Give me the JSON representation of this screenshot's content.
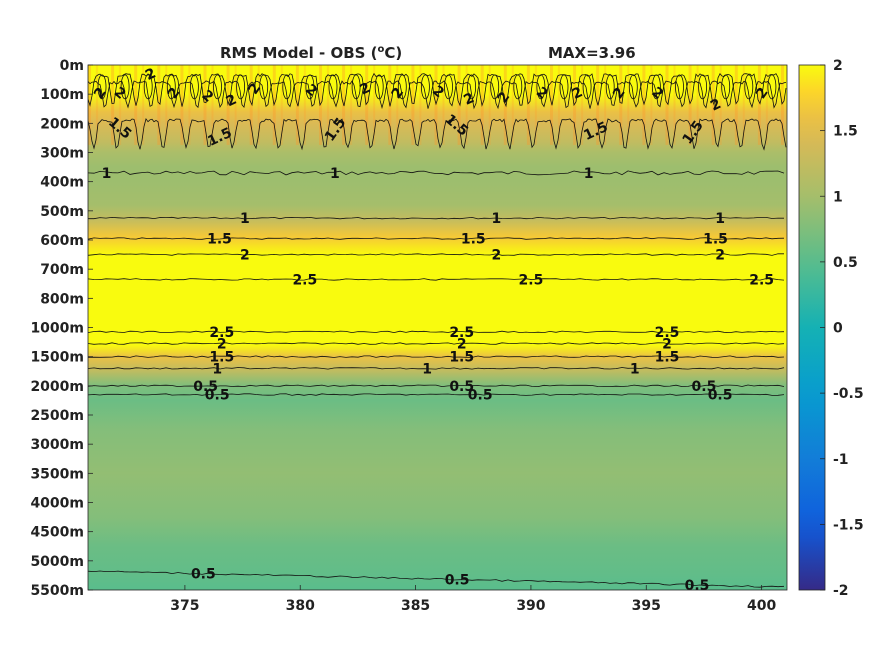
{
  "chart_data": {
    "type": "heatmap",
    "title": "RMS Model - OBS (",
    "title_unit_sup": "o",
    "title_unit_end": "C)",
    "max_label": "MAX=3.96",
    "x_ticks": [
      "375",
      "380",
      "385",
      "390",
      "395",
      "400"
    ],
    "x_tick_values": [
      375,
      380,
      385,
      390,
      395,
      400
    ],
    "xlim": [
      370.8,
      401.1
    ],
    "y_ticks": [
      "0m",
      "100m",
      "200m",
      "300m",
      "400m",
      "500m",
      "600m",
      "700m",
      "800m",
      "1000m",
      "1500m",
      "2000m",
      "2500m",
      "3000m",
      "3500m",
      "4000m",
      "4500m",
      "5000m",
      "5500m"
    ],
    "colorbar_ticks": [
      "2",
      "1.5",
      "1",
      "0.5",
      "0",
      "-0.5",
      "-1",
      "-1.5",
      "-2"
    ],
    "colorbar_values": [
      2,
      1.5,
      1,
      0.5,
      0,
      -0.5,
      -1,
      -1.5,
      -2
    ],
    "clim": [
      -2,
      2
    ],
    "colormap": "parula",
    "depth_profile": [
      {
        "level": 0,
        "value": 2.3
      },
      {
        "level": 0.5,
        "value": 2.2
      },
      {
        "level": 1,
        "value": 2.0
      },
      {
        "level": 1.6,
        "value": 1.6
      },
      {
        "level": 2.0,
        "value": 1.45
      },
      {
        "level": 2.6,
        "value": 1.25
      },
      {
        "level": 3.0,
        "value": 1.05
      },
      {
        "level": 3.5,
        "value": 0.95
      },
      {
        "level": 4.0,
        "value": 0.95
      },
      {
        "level": 4.8,
        "value": 1.0
      },
      {
        "level": 5.3,
        "value": 1.25
      },
      {
        "level": 5.9,
        "value": 1.7
      },
      {
        "level": 6.5,
        "value": 2.2
      },
      {
        "level": 7.0,
        "value": 2.6
      },
      {
        "level": 8.0,
        "value": 3.2
      },
      {
        "level": 8.7,
        "value": 3.0
      },
      {
        "level": 9.1,
        "value": 2.5
      },
      {
        "level": 9.6,
        "value": 2.0
      },
      {
        "level": 10.0,
        "value": 1.6
      },
      {
        "level": 10.5,
        "value": 1.2
      },
      {
        "level": 11.0,
        "value": 0.75
      },
      {
        "level": 11.5,
        "value": 0.62
      },
      {
        "level": 12.5,
        "value": 0.78
      },
      {
        "level": 14.0,
        "value": 0.88
      },
      {
        "level": 15.5,
        "value": 0.78
      },
      {
        "level": 16.5,
        "value": 0.62
      },
      {
        "level": 17.5,
        "value": 0.55
      },
      {
        "level": 18.0,
        "value": 0.5
      }
    ],
    "contour_lines": [
      {
        "value": "1",
        "level": 3.7,
        "labels": [
          371.6,
          381.5,
          392.5,
          401.5
        ]
      },
      {
        "value": "1",
        "level": 5.25,
        "labels": [
          377.6,
          388.5,
          398.2
        ]
      },
      {
        "value": "1.5",
        "level": 5.95,
        "labels": [
          376.5,
          387.5,
          398.0
        ]
      },
      {
        "value": "2",
        "level": 6.5,
        "labels": [
          377.6,
          388.5,
          398.2
        ]
      },
      {
        "value": "2.5",
        "level": 7.35,
        "labels": [
          380.2,
          390.0,
          400.0
        ]
      },
      {
        "value": "2.5",
        "level": 9.15,
        "labels": [
          376.6,
          387.0,
          395.9
        ]
      },
      {
        "value": "2",
        "level": 9.55,
        "labels": [
          376.6,
          387.0,
          395.9
        ]
      },
      {
        "value": "1.5",
        "level": 10.0,
        "labels": [
          376.6,
          387.0,
          395.9
        ]
      },
      {
        "value": "1",
        "level": 10.4,
        "labels": [
          376.4,
          385.5,
          394.5
        ]
      },
      {
        "value": "0.5",
        "level": 11.0,
        "labels": [
          375.9,
          387.0,
          397.5
        ]
      },
      {
        "value": "0.5",
        "level": 11.3,
        "labels": [
          376.4,
          387.8,
          398.2
        ]
      },
      {
        "value": "0.5",
        "level": 17.35,
        "labels": [
          375.8,
          386.8,
          397.2
        ]
      }
    ],
    "top_zone_labels": [
      {
        "text": "2",
        "x": 371.3,
        "level": 0.95
      },
      {
        "text": "2",
        "x": 372.2,
        "level": 0.95
      },
      {
        "text": "2",
        "x": 373.5,
        "level": 0.3
      },
      {
        "text": "2",
        "x": 374.5,
        "level": 0.95
      },
      {
        "text": "2",
        "x": 376.0,
        "level": 1.05
      },
      {
        "text": "2",
        "x": 377.0,
        "level": 1.2
      },
      {
        "text": "2",
        "x": 378.0,
        "level": 0.8
      },
      {
        "text": "2",
        "x": 380.5,
        "level": 0.85
      },
      {
        "text": "2",
        "x": 382.8,
        "level": 0.8
      },
      {
        "text": "2",
        "x": 384.2,
        "level": 0.95
      },
      {
        "text": "2",
        "x": 386.0,
        "level": 0.9
      },
      {
        "text": "2",
        "x": 387.3,
        "level": 1.15
      },
      {
        "text": "2",
        "x": 388.8,
        "level": 1.1
      },
      {
        "text": "2",
        "x": 390.5,
        "level": 0.95
      },
      {
        "text": "2",
        "x": 392.0,
        "level": 0.95
      },
      {
        "text": "2",
        "x": 393.8,
        "level": 0.95
      },
      {
        "text": "2",
        "x": 395.5,
        "level": 0.95
      },
      {
        "text": "2",
        "x": 398.0,
        "level": 1.35
      },
      {
        "text": "2",
        "x": 400.0,
        "level": 0.95
      },
      {
        "text": "1.5",
        "x": 372.2,
        "level": 2.15
      },
      {
        "text": "1.5",
        "x": 376.5,
        "level": 2.45
      },
      {
        "text": "1.5",
        "x": 381.5,
        "level": 2.2
      },
      {
        "text": "1.5",
        "x": 386.8,
        "level": 2.05
      },
      {
        "text": "1.5",
        "x": 392.8,
        "level": 2.25
      },
      {
        "text": "1.5",
        "x": 397.0,
        "level": 2.3
      }
    ]
  }
}
